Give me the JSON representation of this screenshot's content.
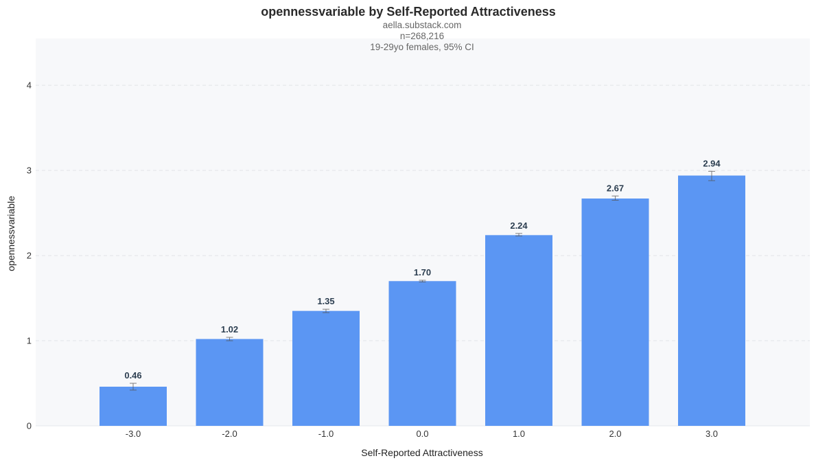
{
  "chart_data": {
    "type": "bar",
    "title": "opennessvariable by Self-Reported Attractiveness",
    "subtitle_lines": [
      "aella.substack.com",
      "n=268,216",
      "19-29yo females, 95% CI"
    ],
    "xlabel": "Self-Reported Attractiveness",
    "ylabel": "opennessvariable",
    "categories": [
      "-3.0",
      "-2.0",
      "-1.0",
      "0.0",
      "1.0",
      "2.0",
      "3.0"
    ],
    "values": [
      0.46,
      1.02,
      1.35,
      1.7,
      2.24,
      2.67,
      2.94
    ],
    "value_labels": [
      "0.46",
      "1.02",
      "1.35",
      "1.70",
      "2.24",
      "2.67",
      "2.94"
    ],
    "ci": [
      [
        0.42,
        0.5
      ],
      [
        1.0,
        1.04
      ],
      [
        1.33,
        1.37
      ],
      [
        1.69,
        1.71
      ],
      [
        2.23,
        2.26
      ],
      [
        2.65,
        2.7
      ],
      [
        2.88,
        2.99
      ]
    ],
    "ylim": [
      0,
      4.55
    ],
    "yticks": [
      0,
      1,
      2,
      3,
      4
    ],
    "grid": true,
    "legend": "none",
    "colors": {
      "bar": "#5b96f3",
      "plot_bg": "#f7f8fa",
      "grid": "#e2e4e8",
      "errorbar": "#555555"
    }
  }
}
